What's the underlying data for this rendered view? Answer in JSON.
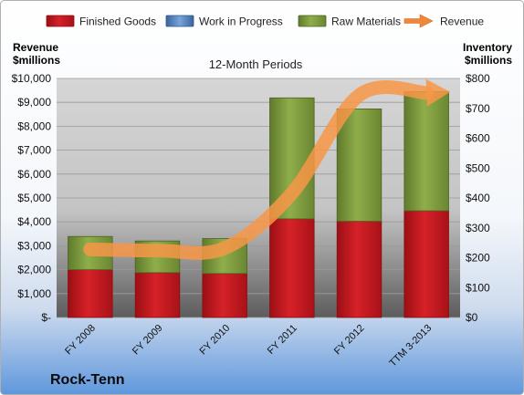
{
  "chart_data": {
    "type": "bar",
    "stacked": true,
    "title": "12-Month Periods",
    "company": "Rock-Tenn",
    "categories": [
      "FY 2008",
      "FY 2009",
      "FY 2010",
      "FY 2011",
      "FY 2012",
      "TTM 3-2013"
    ],
    "left_axis": {
      "label_line1": "Revenue",
      "label_line2": "$millions",
      "min": 0,
      "max": 10000,
      "step": 1000,
      "tick_labels": [
        "$-",
        "$1,000",
        "$2,000",
        "$3,000",
        "$4,000",
        "$5,000",
        "$6,000",
        "$7,000",
        "$8,000",
        "$9,000",
        "$10,000"
      ]
    },
    "right_axis": {
      "label_line1": "Inventory",
      "label_line2": "$millions",
      "min": 0,
      "max": 800,
      "step": 100,
      "tick_labels": [
        "$0",
        "$100",
        "$200",
        "$300",
        "$400",
        "$500",
        "$600",
        "$700",
        "$800"
      ]
    },
    "legend": {
      "placement": "top",
      "entries": [
        "Finished Goods",
        "Work in Progress",
        "Raw Materials",
        "Revenue"
      ]
    },
    "series": [
      {
        "name": "Finished Goods",
        "axis": "right",
        "kind": "bar",
        "color": "#c3151c",
        "values": [
          160,
          150,
          147,
          330,
          322,
          357
        ]
      },
      {
        "name": "Work in Progress",
        "axis": "right",
        "kind": "bar",
        "color": "#4f81bd",
        "values": [
          0,
          0,
          0,
          0,
          0,
          0
        ]
      },
      {
        "name": "Raw Materials",
        "axis": "right",
        "kind": "bar",
        "color": "#77933c",
        "values": [
          111,
          106,
          117,
          405,
          376,
          399
        ]
      },
      {
        "name": "Revenue",
        "axis": "left",
        "kind": "line",
        "color": "#f79646",
        "values": [
          2850,
          2800,
          2900,
          5200,
          9300,
          9400
        ]
      }
    ]
  }
}
